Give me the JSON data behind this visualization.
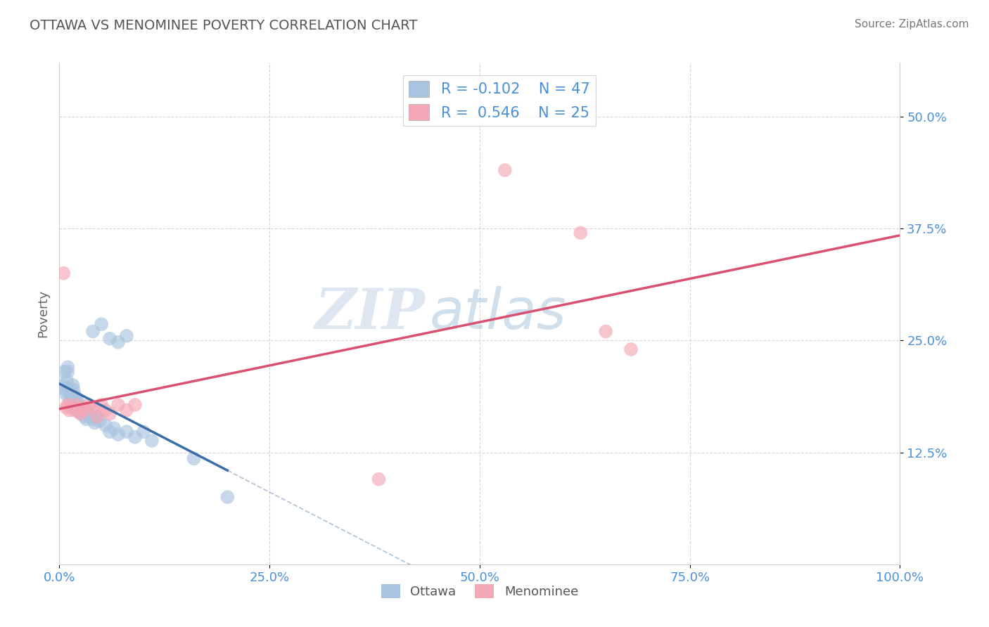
{
  "title": "OTTAWA VS MENOMINEE POVERTY CORRELATION CHART",
  "source": "Source: ZipAtlas.com",
  "ylabel": "Poverty",
  "watermark_zip": "ZIP",
  "watermark_atlas": "atlas",
  "xlim": [
    0.0,
    1.0
  ],
  "ylim": [
    0.0,
    0.56
  ],
  "xticks": [
    0.0,
    0.25,
    0.5,
    0.75,
    1.0
  ],
  "xticklabels": [
    "0.0%",
    "25.0%",
    "50.0%",
    "75.0%",
    "100.0%"
  ],
  "ytick_positions": [
    0.125,
    0.25,
    0.375,
    0.5
  ],
  "yticklabels": [
    "12.5%",
    "25.0%",
    "37.5%",
    "50.0%"
  ],
  "ottawa_color": "#a8c4e0",
  "menominee_color": "#f4a7b4",
  "ottawa_line_color": "#3a6ea8",
  "menominee_line_color": "#d95070",
  "ottawa_R": -0.102,
  "ottawa_N": 47,
  "menominee_R": 0.546,
  "menominee_N": 25,
  "ottawa_x": [
    0.005,
    0.006,
    0.007,
    0.008,
    0.009,
    0.01,
    0.01,
    0.011,
    0.012,
    0.013,
    0.014,
    0.015,
    0.016,
    0.017,
    0.018,
    0.019,
    0.02,
    0.021,
    0.022,
    0.023,
    0.024,
    0.025,
    0.026,
    0.028,
    0.03,
    0.032,
    0.035,
    0.038,
    0.04,
    0.042,
    0.045,
    0.048,
    0.055,
    0.06,
    0.065,
    0.07,
    0.08,
    0.09,
    0.1,
    0.11,
    0.04,
    0.05,
    0.06,
    0.07,
    0.08,
    0.16,
    0.2
  ],
  "ottawa_y": [
    0.2,
    0.215,
    0.195,
    0.19,
    0.205,
    0.215,
    0.22,
    0.195,
    0.185,
    0.195,
    0.19,
    0.185,
    0.2,
    0.195,
    0.18,
    0.188,
    0.185,
    0.175,
    0.182,
    0.178,
    0.17,
    0.175,
    0.172,
    0.168,
    0.165,
    0.162,
    0.17,
    0.165,
    0.162,
    0.158,
    0.165,
    0.16,
    0.155,
    0.148,
    0.152,
    0.145,
    0.148,
    0.142,
    0.148,
    0.138,
    0.26,
    0.268,
    0.252,
    0.248,
    0.255,
    0.118,
    0.075
  ],
  "menominee_x": [
    0.005,
    0.008,
    0.01,
    0.012,
    0.015,
    0.018,
    0.02,
    0.022,
    0.025,
    0.028,
    0.03,
    0.035,
    0.04,
    0.045,
    0.05,
    0.055,
    0.06,
    0.07,
    0.08,
    0.09,
    0.53,
    0.62,
    0.65,
    0.68,
    0.38
  ],
  "menominee_y": [
    0.325,
    0.175,
    0.178,
    0.172,
    0.175,
    0.172,
    0.178,
    0.172,
    0.168,
    0.175,
    0.172,
    0.178,
    0.175,
    0.165,
    0.178,
    0.172,
    0.168,
    0.178,
    0.172,
    0.178,
    0.44,
    0.37,
    0.26,
    0.24,
    0.095
  ],
  "background_color": "#ffffff",
  "grid_color": "#cccccc",
  "title_color": "#555555",
  "axis_label_color": "#666666",
  "tick_color": "#4a90d9",
  "source_color": "#777777",
  "legend_text_color": "#4a90d9"
}
